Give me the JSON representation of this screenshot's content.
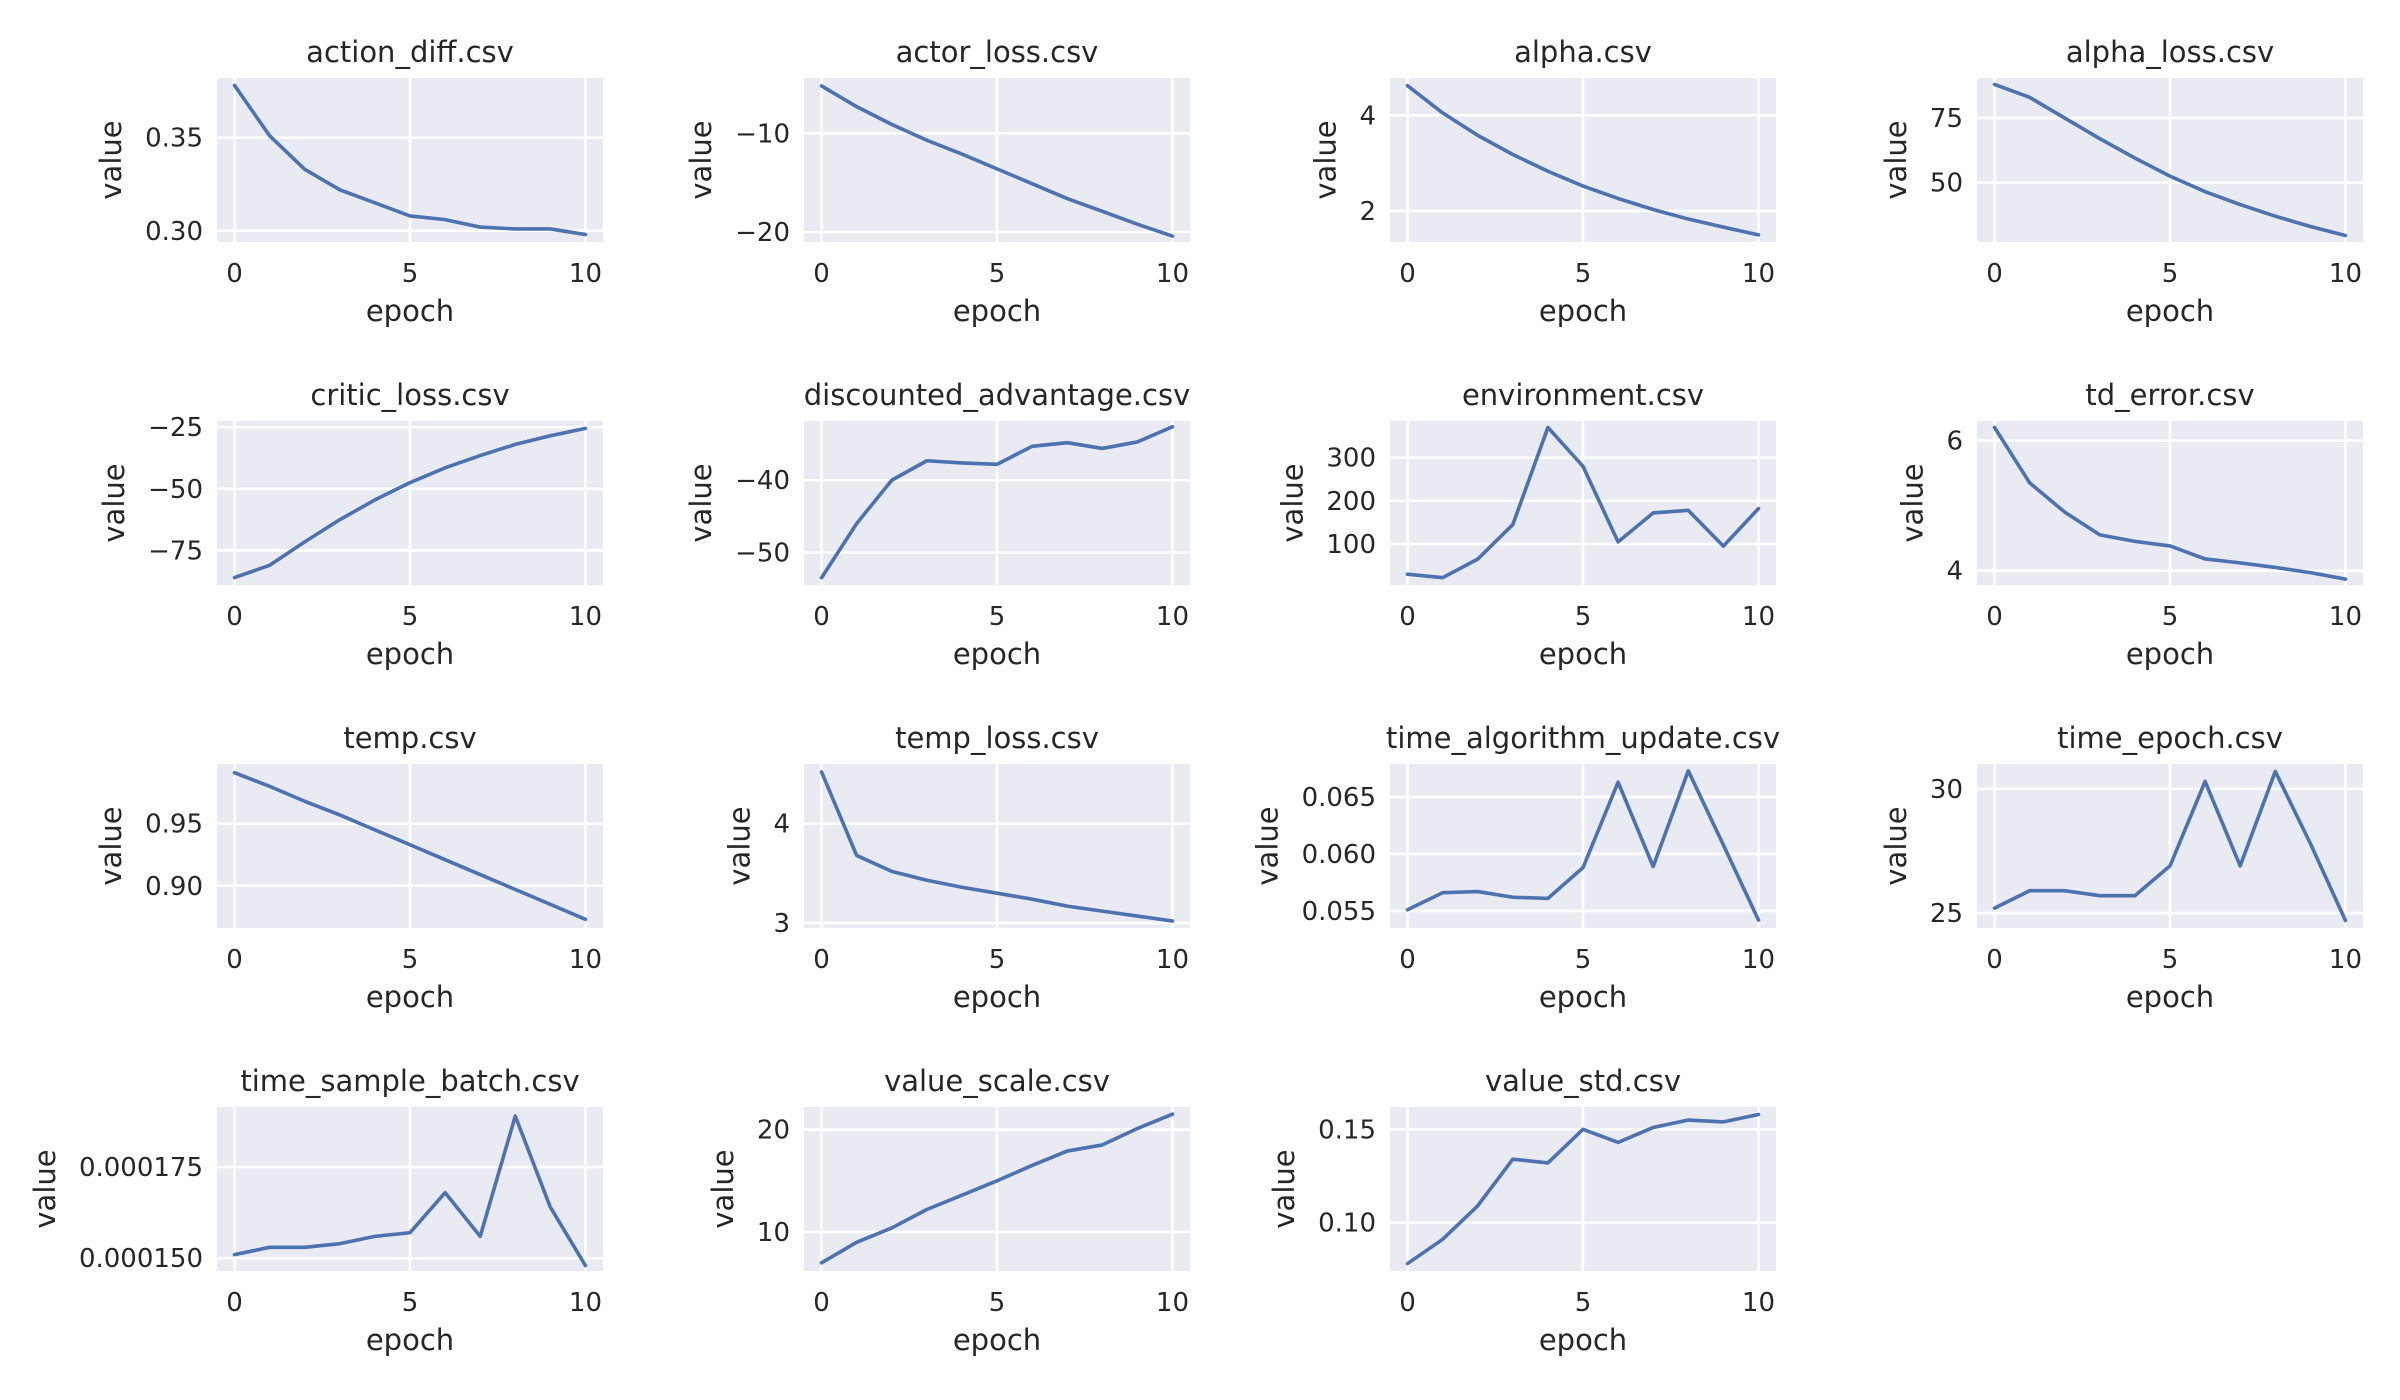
{
  "chart_data": [
    {
      "type": "line",
      "title": "action_diff.csv",
      "xlabel": "epoch",
      "ylabel": "value",
      "x": [
        0,
        1,
        2,
        3,
        4,
        5,
        6,
        7,
        8,
        9,
        10
      ],
      "series": [
        {
          "values": [
            0.378,
            0.351,
            0.333,
            0.322,
            0.315,
            0.308,
            0.306,
            0.302,
            0.301,
            0.301,
            0.298
          ]
        }
      ],
      "xlim": [
        -0.5,
        10.5
      ],
      "ylim": [
        0.294,
        0.382
      ],
      "xticks": [
        0,
        5,
        10
      ],
      "yticks": [
        0.3,
        0.35
      ],
      "ytick_labels": [
        "0.30",
        "0.35"
      ],
      "grid": true
    },
    {
      "type": "line",
      "title": "actor_loss.csv",
      "xlabel": "epoch",
      "ylabel": "value",
      "x": [
        0,
        1,
        2,
        3,
        4,
        5,
        6,
        7,
        8,
        9,
        10
      ],
      "series": [
        {
          "values": [
            -5.2,
            -7.3,
            -9.1,
            -10.7,
            -12.1,
            -13.6,
            -15.1,
            -16.6,
            -17.9,
            -19.2,
            -20.4
          ]
        }
      ],
      "xlim": [
        -0.5,
        10.5
      ],
      "ylim": [
        -21.0,
        -4.4
      ],
      "xticks": [
        0,
        5,
        10
      ],
      "yticks": [
        -10,
        -20
      ],
      "ytick_labels": [
        "−10",
        "−20"
      ],
      "grid": true
    },
    {
      "type": "line",
      "title": "alpha.csv",
      "xlabel": "epoch",
      "ylabel": "value",
      "x": [
        0,
        1,
        2,
        3,
        4,
        5,
        6,
        7,
        8,
        9,
        10
      ],
      "series": [
        {
          "values": [
            4.62,
            4.05,
            3.58,
            3.18,
            2.83,
            2.52,
            2.26,
            2.03,
            1.83,
            1.66,
            1.5
          ]
        }
      ],
      "xlim": [
        -0.5,
        10.5
      ],
      "ylim": [
        1.35,
        4.78
      ],
      "xticks": [
        0,
        5,
        10
      ],
      "yticks": [
        2,
        4
      ],
      "ytick_labels": [
        "2",
        "4"
      ],
      "grid": true
    },
    {
      "type": "line",
      "title": "alpha_loss.csv",
      "xlabel": "epoch",
      "ylabel": "value",
      "x": [
        0,
        1,
        2,
        3,
        4,
        5,
        6,
        7,
        8,
        9,
        10
      ],
      "series": [
        {
          "values": [
            88.0,
            83.0,
            75.0,
            67.0,
            59.5,
            52.5,
            46.5,
            41.5,
            37.0,
            33.0,
            29.5
          ]
        }
      ],
      "xlim": [
        -0.5,
        10.5
      ],
      "ylim": [
        27.0,
        90.5
      ],
      "xticks": [
        0,
        5,
        10
      ],
      "yticks": [
        50,
        75
      ],
      "ytick_labels": [
        "50",
        "75"
      ],
      "grid": true
    },
    {
      "type": "line",
      "title": "critic_loss.csv",
      "xlabel": "epoch",
      "ylabel": "value",
      "x": [
        0,
        1,
        2,
        3,
        4,
        5,
        6,
        7,
        8,
        9,
        10
      ],
      "series": [
        {
          "values": [
            -86,
            -81,
            -71.5,
            -62.5,
            -54.5,
            -47.5,
            -41.5,
            -36.5,
            -32.0,
            -28.5,
            -25.5
          ]
        }
      ],
      "xlim": [
        -0.5,
        10.5
      ],
      "ylim": [
        -89,
        -22.5
      ],
      "xticks": [
        0,
        5,
        10
      ],
      "yticks": [
        -25,
        -50,
        -75
      ],
      "ytick_labels": [
        "−25",
        "−50",
        "−75"
      ],
      "grid": true
    },
    {
      "type": "line",
      "title": "discounted_advantage.csv",
      "xlabel": "epoch",
      "ylabel": "value",
      "x": [
        0,
        1,
        2,
        3,
        4,
        5,
        6,
        7,
        8,
        9,
        10
      ],
      "series": [
        {
          "values": [
            -53.5,
            -46.0,
            -40.0,
            -37.3,
            -37.6,
            -37.8,
            -35.3,
            -34.8,
            -35.6,
            -34.7,
            -32.6
          ]
        }
      ],
      "xlim": [
        -0.5,
        10.5
      ],
      "ylim": [
        -54.5,
        -31.8
      ],
      "xticks": [
        0,
        5,
        10
      ],
      "yticks": [
        -40,
        -50
      ],
      "ytick_labels": [
        "−40",
        "−50"
      ],
      "grid": true
    },
    {
      "type": "line",
      "title": "environment.csv",
      "xlabel": "epoch",
      "ylabel": "value",
      "x": [
        0,
        1,
        2,
        3,
        4,
        5,
        6,
        7,
        8,
        9,
        10
      ],
      "series": [
        {
          "values": [
            30,
            22,
            65,
            145,
            370,
            280,
            105,
            172,
            178,
            95,
            182
          ]
        }
      ],
      "xlim": [
        -0.5,
        10.5
      ],
      "ylim": [
        5,
        385
      ],
      "xticks": [
        0,
        5,
        10
      ],
      "yticks": [
        100,
        200,
        300
      ],
      "ytick_labels": [
        "100",
        "200",
        "300"
      ],
      "grid": true
    },
    {
      "type": "line",
      "title": "td_error.csv",
      "xlabel": "epoch",
      "ylabel": "value",
      "x": [
        0,
        1,
        2,
        3,
        4,
        5,
        6,
        7,
        8,
        9,
        10
      ],
      "series": [
        {
          "values": [
            6.2,
            5.35,
            4.9,
            4.55,
            4.45,
            4.38,
            4.18,
            4.12,
            4.05,
            3.97,
            3.87
          ]
        }
      ],
      "xlim": [
        -0.5,
        10.5
      ],
      "ylim": [
        3.78,
        6.3
      ],
      "xticks": [
        0,
        5,
        10
      ],
      "yticks": [
        4,
        6
      ],
      "ytick_labels": [
        "4",
        "6"
      ],
      "grid": true
    },
    {
      "type": "line",
      "title": "temp.csv",
      "xlabel": "epoch",
      "ylabel": "value",
      "x": [
        0,
        1,
        2,
        3,
        4,
        5,
        6,
        7,
        8,
        9,
        10
      ],
      "series": [
        {
          "values": [
            0.991,
            0.98,
            0.968,
            0.957,
            0.945,
            0.933,
            0.921,
            0.909,
            0.897,
            0.885,
            0.873
          ]
        }
      ],
      "xlim": [
        -0.5,
        10.5
      ],
      "ylim": [
        0.866,
        0.998
      ],
      "xticks": [
        0,
        5,
        10
      ],
      "yticks": [
        0.9,
        0.95
      ],
      "ytick_labels": [
        "0.90",
        "0.95"
      ],
      "grid": true
    },
    {
      "type": "line",
      "title": "temp_loss.csv",
      "xlabel": "epoch",
      "ylabel": "value",
      "x": [
        0,
        1,
        2,
        3,
        4,
        5,
        6,
        7,
        8,
        9,
        10
      ],
      "series": [
        {
          "values": [
            4.52,
            3.68,
            3.52,
            3.43,
            3.36,
            3.3,
            3.24,
            3.17,
            3.12,
            3.07,
            3.02
          ]
        }
      ],
      "xlim": [
        -0.5,
        10.5
      ],
      "ylim": [
        2.95,
        4.6
      ],
      "xticks": [
        0,
        5,
        10
      ],
      "yticks": [
        3,
        4
      ],
      "ytick_labels": [
        "3",
        "4"
      ],
      "grid": true
    },
    {
      "type": "line",
      "title": "time_algorithm_update.csv",
      "xlabel": "epoch",
      "ylabel": "value",
      "x": [
        0,
        1,
        2,
        3,
        4,
        5,
        6,
        7,
        8,
        9,
        10
      ],
      "series": [
        {
          "values": [
            0.0551,
            0.0566,
            0.0567,
            0.0562,
            0.0561,
            0.0588,
            0.0663,
            0.0589,
            0.0673,
            0.0608,
            0.0542
          ]
        }
      ],
      "xlim": [
        -0.5,
        10.5
      ],
      "ylim": [
        0.0535,
        0.0679
      ],
      "xticks": [
        0,
        5,
        10
      ],
      "yticks": [
        0.055,
        0.06,
        0.065
      ],
      "ytick_labels": [
        "0.055",
        "0.060",
        "0.065"
      ],
      "grid": true
    },
    {
      "type": "line",
      "title": "time_epoch.csv",
      "xlabel": "epoch",
      "ylabel": "value",
      "x": [
        0,
        1,
        2,
        3,
        4,
        5,
        6,
        7,
        8,
        9,
        10
      ],
      "series": [
        {
          "values": [
            25.2,
            25.9,
            25.9,
            25.7,
            25.7,
            26.9,
            30.3,
            26.9,
            30.7,
            27.8,
            24.7
          ]
        }
      ],
      "xlim": [
        -0.5,
        10.5
      ],
      "ylim": [
        24.4,
        31.0
      ],
      "xticks": [
        0,
        5,
        10
      ],
      "yticks": [
        25,
        30
      ],
      "ytick_labels": [
        "25",
        "30"
      ],
      "grid": true
    },
    {
      "type": "line",
      "title": "time_sample_batch.csv",
      "xlabel": "epoch",
      "ylabel": "value",
      "x": [
        0,
        1,
        2,
        3,
        4,
        5,
        6,
        7,
        8,
        9,
        10
      ],
      "series": [
        {
          "values": [
            0.000151,
            0.000153,
            0.000153,
            0.000154,
            0.000156,
            0.000157,
            0.000168,
            0.000156,
            0.000189,
            0.000164,
            0.000148
          ]
        }
      ],
      "xlim": [
        -0.5,
        10.5
      ],
      "ylim": [
        0.0001465,
        0.0001915
      ],
      "xticks": [
        0,
        5,
        10
      ],
      "yticks": [
        0.00015,
        0.000175
      ],
      "ytick_labels": [
        "0.000150",
        "0.000175"
      ],
      "grid": true
    },
    {
      "type": "line",
      "title": "value_scale.csv",
      "xlabel": "epoch",
      "ylabel": "value",
      "x": [
        0,
        1,
        2,
        3,
        4,
        5,
        6,
        7,
        8,
        9,
        10
      ],
      "series": [
        {
          "values": [
            7.0,
            9.0,
            10.4,
            12.2,
            13.6,
            15.0,
            16.5,
            17.9,
            18.5,
            20.1,
            21.5
          ]
        }
      ],
      "xlim": [
        -0.5,
        10.5
      ],
      "ylim": [
        6.2,
        22.2
      ],
      "xticks": [
        0,
        5,
        10
      ],
      "yticks": [
        10,
        20
      ],
      "ytick_labels": [
        "10",
        "20"
      ],
      "grid": true
    },
    {
      "type": "line",
      "title": "value_std.csv",
      "xlabel": "epoch",
      "ylabel": "value",
      "x": [
        0,
        1,
        2,
        3,
        4,
        5,
        6,
        7,
        8,
        9,
        10
      ],
      "series": [
        {
          "values": [
            0.078,
            0.091,
            0.109,
            0.134,
            0.132,
            0.15,
            0.143,
            0.151,
            0.155,
            0.154,
            0.158
          ]
        }
      ],
      "xlim": [
        -0.5,
        10.5
      ],
      "ylim": [
        0.074,
        0.162
      ],
      "xticks": [
        0,
        5,
        10
      ],
      "yticks": [
        0.1,
        0.15
      ],
      "ytick_labels": [
        "0.10",
        "0.15"
      ],
      "grid": true
    }
  ],
  "colors": {
    "series": "#4c72b0",
    "panel_background": "#eaeaf2",
    "grid": "#ffffff",
    "text": "#262626"
  }
}
